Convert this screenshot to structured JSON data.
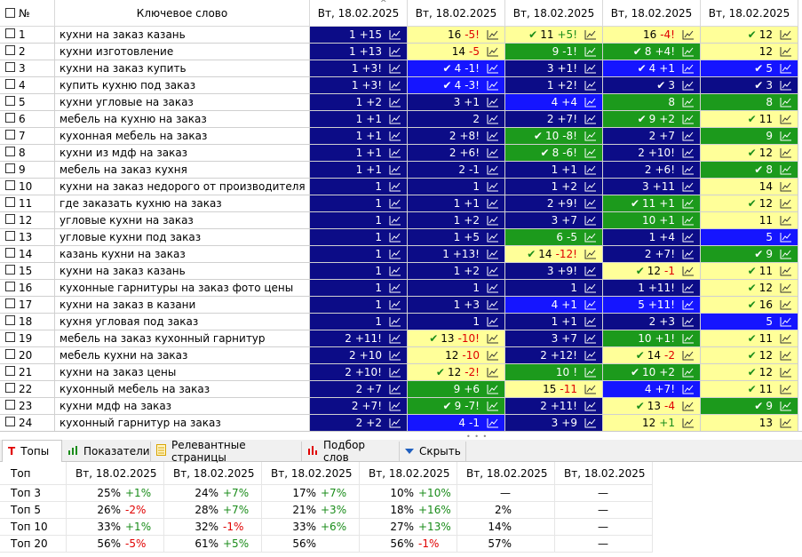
{
  "grid": {
    "headers": {
      "num": "№",
      "keyword": "Ключевое слово",
      "dates": [
        "Вт, 18.02.2025",
        "Вт, 18.02.2025",
        "Вт, 18.02.2025",
        "Вт, 18.02.2025",
        "Вт, 18.02.2025"
      ]
    },
    "rows": [
      {
        "num": "1",
        "kw": "кухни на заказ казань",
        "cells": [
          {
            "v": "1",
            "d": "+15",
            "bg": "navy"
          },
          {
            "v": "16",
            "d": "-5!",
            "bg": "yellow"
          },
          {
            "v": "11",
            "d": "+5!",
            "bg": "yellow",
            "mark": true
          },
          {
            "v": "16",
            "d": "-4!",
            "bg": "yellow"
          },
          {
            "v": "12",
            "d": "",
            "bg": "yellow",
            "mark": true
          }
        ]
      },
      {
        "num": "2",
        "kw": "кухни изготовление",
        "cells": [
          {
            "v": "1",
            "d": "+13",
            "bg": "navy"
          },
          {
            "v": "14",
            "d": "-5",
            "bg": "yellow"
          },
          {
            "v": "9",
            "d": "-1!",
            "bg": "green"
          },
          {
            "v": "8",
            "d": "+4!",
            "bg": "green",
            "mark": true
          },
          {
            "v": "12",
            "d": "",
            "bg": "yellow"
          }
        ]
      },
      {
        "num": "3",
        "kw": "кухни на заказ купить",
        "cells": [
          {
            "v": "1",
            "d": "+3!",
            "bg": "navy"
          },
          {
            "v": "4",
            "d": "-1!",
            "bg": "blue",
            "mark": true
          },
          {
            "v": "3",
            "d": "+1!",
            "bg": "navy"
          },
          {
            "v": "4",
            "d": "+1",
            "bg": "blue",
            "mark": true
          },
          {
            "v": "5",
            "d": "",
            "bg": "blue",
            "mark": true
          }
        ]
      },
      {
        "num": "4",
        "kw": "купить кухню под заказ",
        "cells": [
          {
            "v": "1",
            "d": "+3!",
            "bg": "navy"
          },
          {
            "v": "4",
            "d": "-3!",
            "bg": "blue",
            "mark": true
          },
          {
            "v": "1",
            "d": "+2!",
            "bg": "navy"
          },
          {
            "v": "3",
            "d": "",
            "bg": "navy",
            "mark": true
          },
          {
            "v": "3",
            "d": "",
            "bg": "navy",
            "mark": true
          }
        ]
      },
      {
        "num": "5",
        "kw": "кухни угловые на заказ",
        "cells": [
          {
            "v": "1",
            "d": "+2",
            "bg": "navy"
          },
          {
            "v": "3",
            "d": "+1",
            "bg": "navy"
          },
          {
            "v": "4",
            "d": "+4",
            "bg": "blue"
          },
          {
            "v": "8",
            "d": "",
            "bg": "green"
          },
          {
            "v": "8",
            "d": "",
            "bg": "green"
          }
        ]
      },
      {
        "num": "6",
        "kw": "мебель на кухню на заказ",
        "cells": [
          {
            "v": "1",
            "d": "+1",
            "bg": "navy"
          },
          {
            "v": "2",
            "d": "",
            "bg": "navy"
          },
          {
            "v": "2",
            "d": "+7!",
            "bg": "navy"
          },
          {
            "v": "9",
            "d": "+2",
            "bg": "green",
            "mark": true
          },
          {
            "v": "11",
            "d": "",
            "bg": "yellow",
            "mark": true
          }
        ]
      },
      {
        "num": "7",
        "kw": "кухонная мебель на заказ",
        "cells": [
          {
            "v": "1",
            "d": "+1",
            "bg": "navy"
          },
          {
            "v": "2",
            "d": "+8!",
            "bg": "navy"
          },
          {
            "v": "10",
            "d": "-8!",
            "bg": "green",
            "mark": true
          },
          {
            "v": "2",
            "d": "+7",
            "bg": "navy"
          },
          {
            "v": "9",
            "d": "",
            "bg": "green"
          }
        ]
      },
      {
        "num": "8",
        "kw": "кухни из мдф на заказ",
        "cells": [
          {
            "v": "1",
            "d": "+1",
            "bg": "navy"
          },
          {
            "v": "2",
            "d": "+6!",
            "bg": "navy"
          },
          {
            "v": "8",
            "d": "-6!",
            "bg": "green",
            "mark": true
          },
          {
            "v": "2",
            "d": "+10!",
            "bg": "navy"
          },
          {
            "v": "12",
            "d": "",
            "bg": "yellow",
            "mark": true
          }
        ]
      },
      {
        "num": "9",
        "kw": "мебель на заказ кухня",
        "cells": [
          {
            "v": "1",
            "d": "+1",
            "bg": "navy"
          },
          {
            "v": "2",
            "d": "-1",
            "bg": "navy"
          },
          {
            "v": "1",
            "d": "+1",
            "bg": "navy"
          },
          {
            "v": "2",
            "d": "+6!",
            "bg": "navy"
          },
          {
            "v": "8",
            "d": "",
            "bg": "green",
            "mark": true
          }
        ]
      },
      {
        "num": "10",
        "kw": "кухни на заказ недорого от производителя",
        "cells": [
          {
            "v": "1",
            "d": "",
            "bg": "navy"
          },
          {
            "v": "1",
            "d": "",
            "bg": "navy"
          },
          {
            "v": "1",
            "d": "+2",
            "bg": "navy"
          },
          {
            "v": "3",
            "d": "+11",
            "bg": "navy"
          },
          {
            "v": "14",
            "d": "",
            "bg": "yellow"
          }
        ]
      },
      {
        "num": "11",
        "kw": "где заказать кухню на заказ",
        "cells": [
          {
            "v": "1",
            "d": "",
            "bg": "navy"
          },
          {
            "v": "1",
            "d": "+1",
            "bg": "navy"
          },
          {
            "v": "2",
            "d": "+9!",
            "bg": "navy"
          },
          {
            "v": "11",
            "d": "+1",
            "bg": "green",
            "mark": true
          },
          {
            "v": "12",
            "d": "",
            "bg": "yellow",
            "mark": true
          }
        ]
      },
      {
        "num": "12",
        "kw": "угловые кухни на заказ",
        "cells": [
          {
            "v": "1",
            "d": "",
            "bg": "navy"
          },
          {
            "v": "1",
            "d": "+2",
            "bg": "navy"
          },
          {
            "v": "3",
            "d": "+7",
            "bg": "navy"
          },
          {
            "v": "10",
            "d": "+1",
            "bg": "green"
          },
          {
            "v": "11",
            "d": "",
            "bg": "yellow"
          }
        ]
      },
      {
        "num": "13",
        "kw": "угловые кухни под заказ",
        "cells": [
          {
            "v": "1",
            "d": "",
            "bg": "navy"
          },
          {
            "v": "1",
            "d": "+5",
            "bg": "navy"
          },
          {
            "v": "6",
            "d": "-5",
            "bg": "green"
          },
          {
            "v": "1",
            "d": "+4",
            "bg": "navy"
          },
          {
            "v": "5",
            "d": "",
            "bg": "blue"
          }
        ]
      },
      {
        "num": "14",
        "kw": "казань кухни на заказ",
        "cells": [
          {
            "v": "1",
            "d": "",
            "bg": "navy"
          },
          {
            "v": "1",
            "d": "+13!",
            "bg": "navy"
          },
          {
            "v": "14",
            "d": "-12!",
            "bg": "yellow",
            "mark": true
          },
          {
            "v": "2",
            "d": "+7!",
            "bg": "navy"
          },
          {
            "v": "9",
            "d": "",
            "bg": "green",
            "mark": true
          }
        ]
      },
      {
        "num": "15",
        "kw": "кухни на заказ казань",
        "cells": [
          {
            "v": "1",
            "d": "",
            "bg": "navy"
          },
          {
            "v": "1",
            "d": "+2",
            "bg": "navy"
          },
          {
            "v": "3",
            "d": "+9!",
            "bg": "navy"
          },
          {
            "v": "12",
            "d": "-1",
            "bg": "yellow",
            "mark": true
          },
          {
            "v": "11",
            "d": "",
            "bg": "yellow",
            "mark": true
          }
        ]
      },
      {
        "num": "16",
        "kw": "кухонные гарнитуры на заказ фото цены",
        "cells": [
          {
            "v": "1",
            "d": "",
            "bg": "navy"
          },
          {
            "v": "1",
            "d": "",
            "bg": "navy"
          },
          {
            "v": "1",
            "d": "",
            "bg": "navy"
          },
          {
            "v": "1",
            "d": "+11!",
            "bg": "navy"
          },
          {
            "v": "12",
            "d": "",
            "bg": "yellow",
            "mark": true
          }
        ]
      },
      {
        "num": "17",
        "kw": "кухни на заказ в казани",
        "cells": [
          {
            "v": "1",
            "d": "",
            "bg": "navy"
          },
          {
            "v": "1",
            "d": "+3",
            "bg": "navy"
          },
          {
            "v": "4",
            "d": "+1",
            "bg": "blue"
          },
          {
            "v": "5",
            "d": "+11!",
            "bg": "blue"
          },
          {
            "v": "16",
            "d": "",
            "bg": "yellow",
            "mark": true
          }
        ]
      },
      {
        "num": "18",
        "kw": "кухня угловая под заказ",
        "cells": [
          {
            "v": "1",
            "d": "",
            "bg": "navy"
          },
          {
            "v": "1",
            "d": "",
            "bg": "navy"
          },
          {
            "v": "1",
            "d": "+1",
            "bg": "navy"
          },
          {
            "v": "2",
            "d": "+3",
            "bg": "navy"
          },
          {
            "v": "5",
            "d": "",
            "bg": "blue"
          }
        ]
      },
      {
        "num": "19",
        "kw": "мебель на заказ кухонный гарнитур",
        "cells": [
          {
            "v": "2",
            "d": "+11!",
            "bg": "navy"
          },
          {
            "v": "13",
            "d": "-10!",
            "bg": "yellow",
            "mark": true
          },
          {
            "v": "3",
            "d": "+7",
            "bg": "navy"
          },
          {
            "v": "10",
            "d": "+1!",
            "bg": "green"
          },
          {
            "v": "11",
            "d": "",
            "bg": "yellow",
            "mark": true
          }
        ]
      },
      {
        "num": "20",
        "kw": "мебель кухни на заказ",
        "cells": [
          {
            "v": "2",
            "d": "+10",
            "bg": "navy"
          },
          {
            "v": "12",
            "d": "-10",
            "bg": "yellow"
          },
          {
            "v": "2",
            "d": "+12!",
            "bg": "navy"
          },
          {
            "v": "14",
            "d": "-2",
            "bg": "yellow",
            "mark": true
          },
          {
            "v": "12",
            "d": "",
            "bg": "yellow",
            "mark": true
          }
        ]
      },
      {
        "num": "21",
        "kw": "кухни на заказ цены",
        "cells": [
          {
            "v": "2",
            "d": "+10!",
            "bg": "navy"
          },
          {
            "v": "12",
            "d": "-2!",
            "bg": "yellow",
            "mark": true
          },
          {
            "v": "10",
            "d": "!",
            "bg": "green"
          },
          {
            "v": "10",
            "d": "+2",
            "bg": "green",
            "mark": true
          },
          {
            "v": "12",
            "d": "",
            "bg": "yellow",
            "mark": true
          }
        ]
      },
      {
        "num": "22",
        "kw": "кухонный мебель на заказ",
        "cells": [
          {
            "v": "2",
            "d": "+7",
            "bg": "navy"
          },
          {
            "v": "9",
            "d": "+6",
            "bg": "green"
          },
          {
            "v": "15",
            "d": "-11",
            "bg": "yellow"
          },
          {
            "v": "4",
            "d": "+7!",
            "bg": "blue"
          },
          {
            "v": "11",
            "d": "",
            "bg": "yellow",
            "mark": true
          }
        ]
      },
      {
        "num": "23",
        "kw": "кухни мдф на заказ",
        "cells": [
          {
            "v": "2",
            "d": "+7!",
            "bg": "navy"
          },
          {
            "v": "9",
            "d": "-7!",
            "bg": "green",
            "mark": true
          },
          {
            "v": "2",
            "d": "+11!",
            "bg": "navy"
          },
          {
            "v": "13",
            "d": "-4",
            "bg": "yellow",
            "mark": true
          },
          {
            "v": "9",
            "d": "",
            "bg": "green",
            "mark": true
          }
        ]
      },
      {
        "num": "24",
        "kw": "кухонный гарнитур на заказ",
        "cells": [
          {
            "v": "2",
            "d": "+2",
            "bg": "navy"
          },
          {
            "v": "4",
            "d": "-1",
            "bg": "blue"
          },
          {
            "v": "3",
            "d": "+9",
            "bg": "navy"
          },
          {
            "v": "12",
            "d": "+1",
            "bg": "yellow"
          },
          {
            "v": "13",
            "d": "",
            "bg": "yellow"
          }
        ]
      }
    ]
  },
  "tabs": [
    {
      "label": "Топы",
      "icon": "text-t-icon",
      "active": true
    },
    {
      "label": "Показатели",
      "icon": "bar-chart-icon",
      "active": false
    },
    {
      "label": "Релевантные страницы",
      "icon": "document-icon",
      "active": false
    },
    {
      "label": "Подбор слов",
      "icon": "red-bars-icon",
      "active": false
    },
    {
      "label": "Скрыть",
      "icon": "triangle-down-icon",
      "active": false
    }
  ],
  "tops": {
    "header_label": "Топ",
    "dates": [
      "Вт, 18.02.2025",
      "Вт, 18.02.2025",
      "Вт, 18.02.2025",
      "Вт, 18.02.2025",
      "Вт, 18.02.2025",
      "Вт, 18.02.2025"
    ],
    "rows": [
      {
        "label": "Топ 3",
        "cells": [
          {
            "v": "25%",
            "d": "+1%"
          },
          {
            "v": "24%",
            "d": "+7%"
          },
          {
            "v": "17%",
            "d": "+7%"
          },
          {
            "v": "10%",
            "d": "+10%"
          },
          {
            "v": "—",
            "d": ""
          },
          {
            "v": "—",
            "d": ""
          }
        ]
      },
      {
        "label": "Топ 5",
        "cells": [
          {
            "v": "26%",
            "d": "-2%"
          },
          {
            "v": "28%",
            "d": "+7%"
          },
          {
            "v": "21%",
            "d": "+3%"
          },
          {
            "v": "18%",
            "d": "+16%"
          },
          {
            "v": "2%",
            "d": ""
          },
          {
            "v": "—",
            "d": ""
          }
        ]
      },
      {
        "label": "Топ 10",
        "cells": [
          {
            "v": "33%",
            "d": "+1%"
          },
          {
            "v": "32%",
            "d": "-1%"
          },
          {
            "v": "33%",
            "d": "+6%"
          },
          {
            "v": "27%",
            "d": "+13%"
          },
          {
            "v": "14%",
            "d": ""
          },
          {
            "v": "—",
            "d": ""
          }
        ]
      },
      {
        "label": "Топ 20",
        "cells": [
          {
            "v": "56%",
            "d": "-5%"
          },
          {
            "v": "61%",
            "d": "+5%"
          },
          {
            "v": "56%",
            "d": ""
          },
          {
            "v": "56%",
            "d": "-1%"
          },
          {
            "v": "57%",
            "d": ""
          },
          {
            "v": "—",
            "d": ""
          }
        ]
      }
    ]
  },
  "colors": {
    "navy": "#0c0c87",
    "blue": "#1515ff",
    "green": "#1c9a1c",
    "yellow": "#ffff99",
    "up": "#1a8c1a",
    "down": "#e00000"
  }
}
